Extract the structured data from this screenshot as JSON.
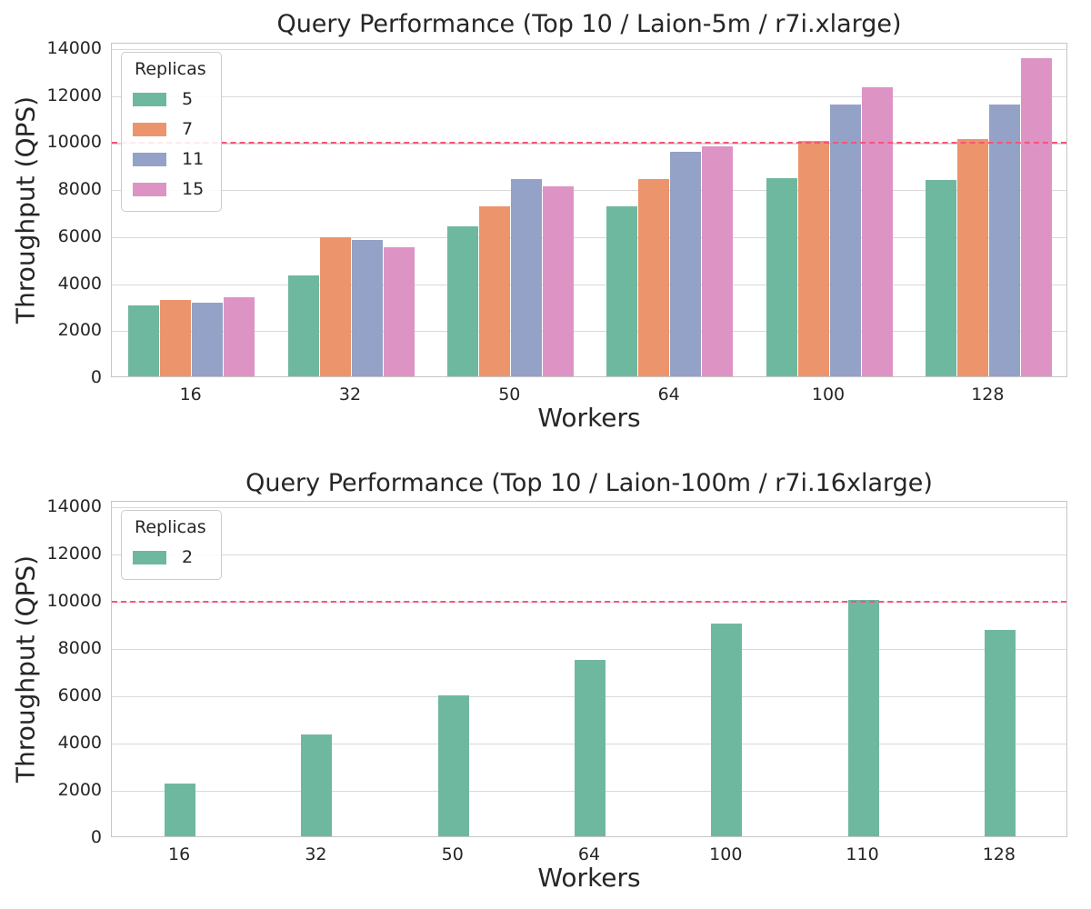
{
  "colors": {
    "text": "#262626",
    "grid": "#d9d9d9",
    "spine": "#c6c6c6",
    "reference_line": "#f5547a",
    "palette": [
      "#6fb8a0",
      "#ec946c",
      "#93a2c6",
      "#dd94c4"
    ]
  },
  "chart_data": [
    {
      "type": "bar",
      "title": "Query Performance (Top 10 / Laion-5m / r7i.xlarge)",
      "xlabel": "Workers",
      "ylabel": "Throughput (QPS)",
      "legend_title": "Replicas",
      "legend_position": "upper left",
      "grid": "horizontal",
      "categories": [
        "16",
        "32",
        "50",
        "64",
        "100",
        "128"
      ],
      "series": [
        {
          "name": "5",
          "color": "#6fb8a0",
          "values": [
            3000,
            4300,
            6400,
            7250,
            8450,
            8350
          ]
        },
        {
          "name": "7",
          "color": "#ec946c",
          "values": [
            3250,
            5900,
            7250,
            8400,
            10000,
            10100
          ]
        },
        {
          "name": "11",
          "color": "#93a2c6",
          "values": [
            3150,
            5800,
            8400,
            9550,
            11550,
            11550
          ]
        },
        {
          "name": "15",
          "color": "#dd94c4",
          "values": [
            3350,
            5500,
            8100,
            9800,
            12300,
            13550
          ]
        }
      ],
      "yticks": [
        0,
        2000,
        4000,
        6000,
        8000,
        10000,
        12000,
        14000
      ],
      "ylim": [
        0,
        14250
      ],
      "reference_line": {
        "value": 10000,
        "color": "#f5547a",
        "style": "dashed"
      }
    },
    {
      "type": "bar",
      "title": "Query Performance (Top 10 / Laion-100m / r7i.16xlarge)",
      "xlabel": "Workers",
      "ylabel": "Throughput (QPS)",
      "legend_title": "Replicas",
      "legend_position": "upper left",
      "grid": "horizontal",
      "categories": [
        "16",
        "32",
        "50",
        "64",
        "100",
        "110",
        "128"
      ],
      "series": [
        {
          "name": "2",
          "color": "#6fb8a0",
          "values": [
            2250,
            4300,
            5950,
            7450,
            9000,
            10000,
            8750
          ]
        }
      ],
      "yticks": [
        0,
        2000,
        4000,
        6000,
        8000,
        10000,
        12000,
        14000
      ],
      "ylim": [
        0,
        14250
      ],
      "reference_line": {
        "value": 10000,
        "color": "#f5547a",
        "style": "dashed"
      }
    }
  ]
}
